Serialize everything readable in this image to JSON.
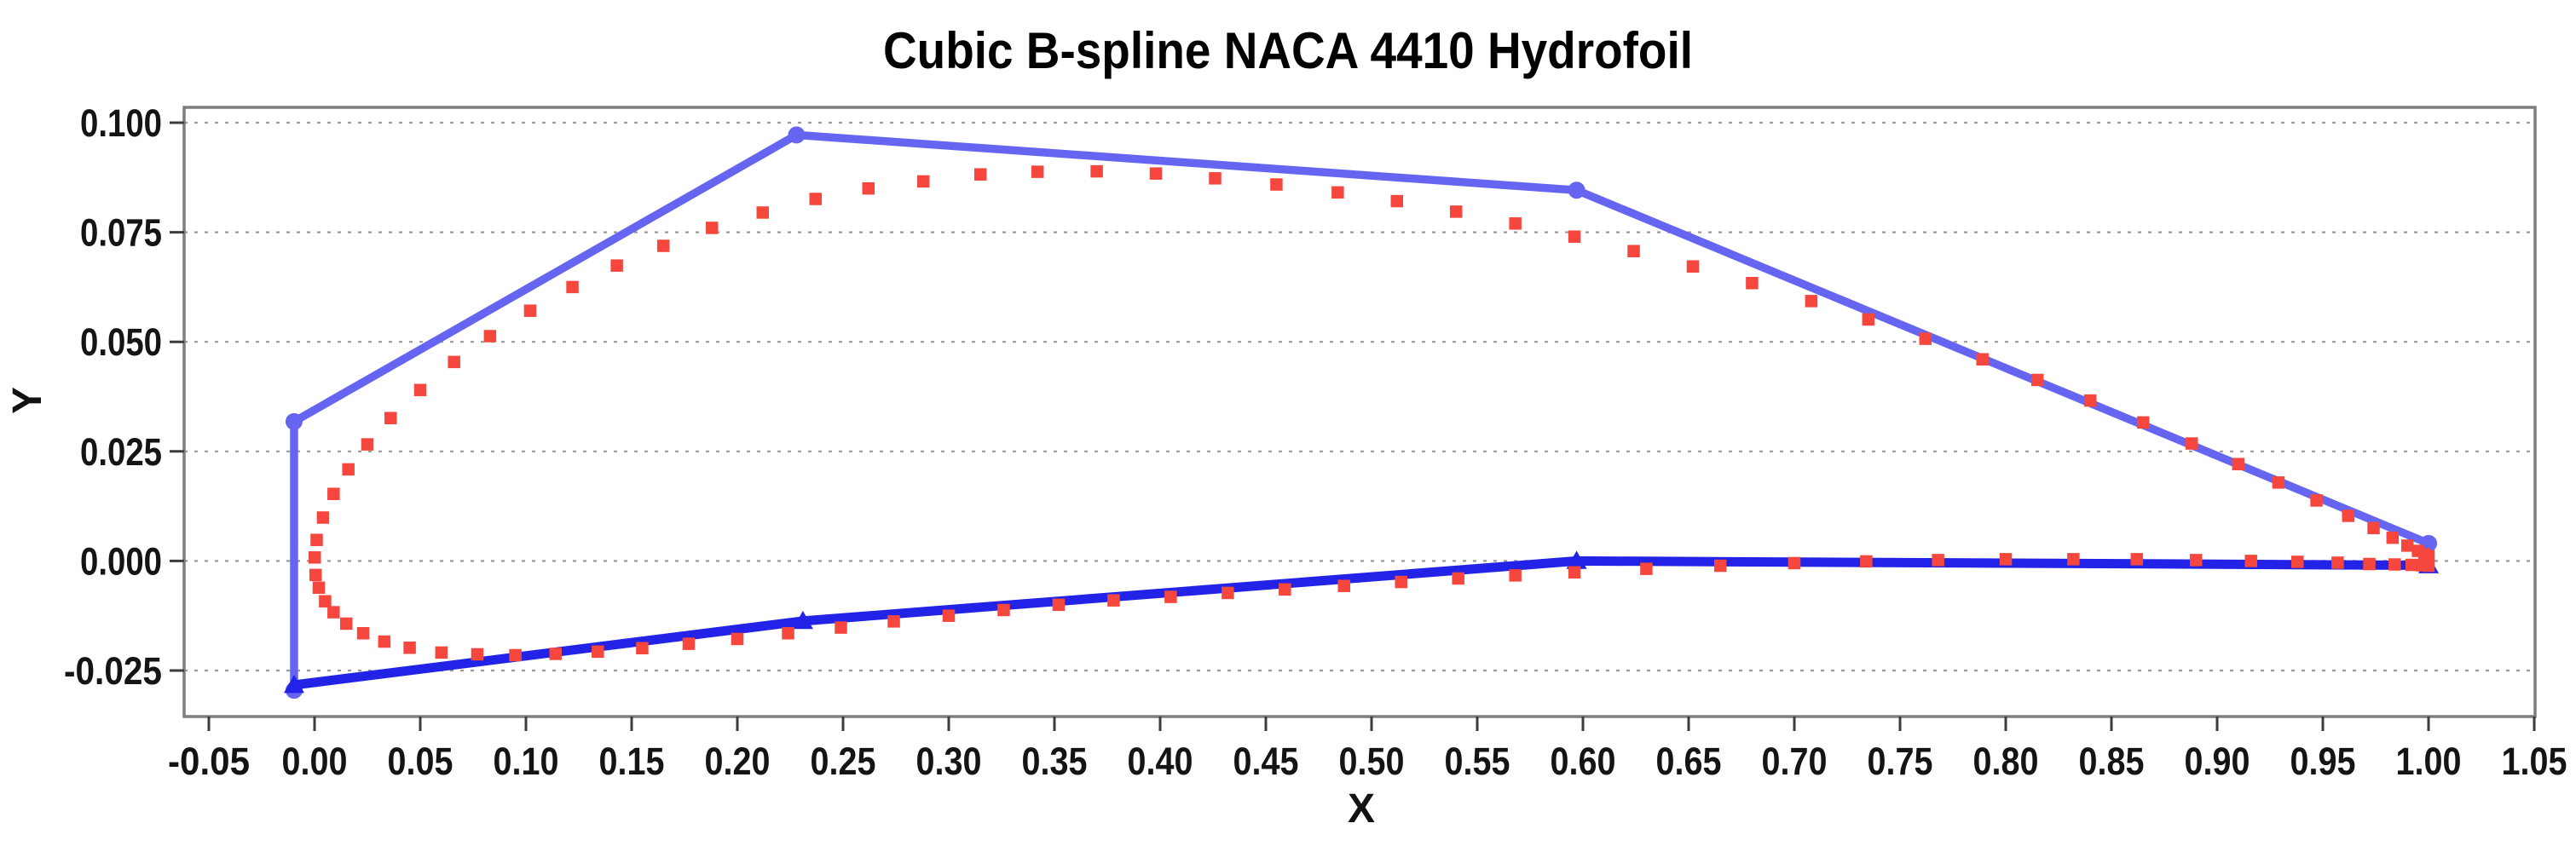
{
  "figure": {
    "title": "Cubic B-spline NACA 4410  Hydrofoil"
  },
  "chart_data": {
    "type": "scatter",
    "title": "Cubic B-spline NACA 4410  Hydrofoil",
    "xlabel": "X",
    "ylabel": "Y",
    "xlim": [
      -0.0617,
      1.0504
    ],
    "ylim": [
      -0.0355,
      0.1035
    ],
    "grid": {
      "horizontal": true,
      "vertical": false,
      "style": "dashed",
      "color": "#9a9a9a"
    },
    "legend": {
      "visible": false
    },
    "x_ticks": [
      {
        "v": -0.05,
        "label": "-0.05"
      },
      {
        "v": 0.0,
        "label": "0.00"
      },
      {
        "v": 0.05,
        "label": "0.05"
      },
      {
        "v": 0.1,
        "label": "0.10"
      },
      {
        "v": 0.15,
        "label": "0.15"
      },
      {
        "v": 0.2,
        "label": "0.20"
      },
      {
        "v": 0.25,
        "label": "0.25"
      },
      {
        "v": 0.3,
        "label": "0.30"
      },
      {
        "v": 0.35,
        "label": "0.35"
      },
      {
        "v": 0.4,
        "label": "0.40"
      },
      {
        "v": 0.45,
        "label": "0.45"
      },
      {
        "v": 0.5,
        "label": "0.50"
      },
      {
        "v": 0.55,
        "label": "0.55"
      },
      {
        "v": 0.6,
        "label": "0.60"
      },
      {
        "v": 0.65,
        "label": "0.65"
      },
      {
        "v": 0.7,
        "label": "0.70"
      },
      {
        "v": 0.75,
        "label": "0.75"
      },
      {
        "v": 0.8,
        "label": "0.80"
      },
      {
        "v": 0.85,
        "label": "0.85"
      },
      {
        "v": 0.9,
        "label": "0.90"
      },
      {
        "v": 0.95,
        "label": "0.95"
      },
      {
        "v": 1.0,
        "label": "1.00"
      },
      {
        "v": 1.05,
        "label": "1.05"
      }
    ],
    "y_ticks": [
      {
        "v": 0.1,
        "label": "0.100"
      },
      {
        "v": 0.075,
        "label": "0.075"
      },
      {
        "v": 0.05,
        "label": "0.050"
      },
      {
        "v": 0.025,
        "label": "0.025"
      },
      {
        "v": 0.0,
        "label": "0.000"
      },
      {
        "v": -0.025,
        "label": "-0.025"
      }
    ],
    "series": [
      {
        "name": "upper-control-polygon",
        "kind": "line",
        "color": "#6565f2",
        "line_width": 9.5,
        "marker": "circle",
        "marker_size": 10,
        "points": [
          [
            -0.0097,
            -0.0295
          ],
          [
            -0.0097,
            0.0318
          ],
          [
            0.228,
            0.0972
          ],
          [
            0.597,
            0.0846
          ],
          [
            1.0,
            0.004
          ]
        ]
      },
      {
        "name": "lower-control-polygon",
        "kind": "line",
        "color": "#2323e8",
        "line_width": 11,
        "marker": "triangle-up",
        "marker_size": 12,
        "points": [
          [
            -0.0097,
            -0.0283
          ],
          [
            0.231,
            -0.0137
          ],
          [
            0.597,
            0.0
          ],
          [
            1.0,
            -0.001
          ]
        ]
      },
      {
        "name": "bspline-curve-points",
        "kind": "scatter",
        "color": "#f5473d",
        "marker": "square",
        "marker_size": 14.5,
        "points": [
          [
            0.0005,
            -0.0032
          ],
          [
            0.002,
            -0.0061
          ],
          [
            0.005,
            -0.0092
          ],
          [
            0.009,
            -0.0117
          ],
          [
            0.015,
            -0.0143
          ],
          [
            0.023,
            -0.0165
          ],
          [
            0.033,
            -0.0184
          ],
          [
            0.045,
            -0.0198
          ],
          [
            0.06,
            -0.0209
          ],
          [
            0.077,
            -0.0213
          ],
          [
            0.095,
            -0.0215
          ],
          [
            0.114,
            -0.0212
          ],
          [
            0.134,
            -0.0207
          ],
          [
            0.155,
            -0.0199
          ],
          [
            0.177,
            -0.0189
          ],
          [
            0.2,
            -0.0178
          ],
          [
            0.224,
            -0.0165
          ],
          [
            0.249,
            -0.0152
          ],
          [
            0.274,
            -0.0138
          ],
          [
            0.3,
            -0.0125
          ],
          [
            0.326,
            -0.0112
          ],
          [
            0.352,
            -0.01
          ],
          [
            0.378,
            -0.009
          ],
          [
            0.405,
            -0.0082
          ],
          [
            0.432,
            -0.0073
          ],
          [
            0.459,
            -0.0065
          ],
          [
            0.487,
            -0.0057
          ],
          [
            0.514,
            -0.0048
          ],
          [
            0.541,
            -0.004
          ],
          [
            0.568,
            -0.0033
          ],
          [
            0.596,
            -0.0026
          ],
          [
            0.63,
            -0.0018
          ],
          [
            0.665,
            -0.0011
          ],
          [
            0.7,
            -0.0005
          ],
          [
            0.734,
            -0.0001
          ],
          [
            0.768,
            0.0002
          ],
          [
            0.8,
            0.0004
          ],
          [
            0.832,
            0.0004
          ],
          [
            0.862,
            0.0004
          ],
          [
            0.89,
            0.0002
          ],
          [
            0.916,
            0.0
          ],
          [
            0.938,
            -0.0002
          ],
          [
            0.957,
            -0.0004
          ],
          [
            0.972,
            -0.0007
          ],
          [
            0.984,
            -0.0008
          ],
          [
            0.992,
            -0.0009
          ],
          [
            0.997,
            -0.001
          ],
          [
            1.0,
            -0.0011
          ],
          [
            0.0001,
            0.0008
          ],
          [
            0.001,
            0.0048
          ],
          [
            0.004,
            0.0099
          ],
          [
            0.009,
            0.0153
          ],
          [
            0.016,
            0.0209
          ],
          [
            0.025,
            0.0266
          ],
          [
            0.036,
            0.0326
          ],
          [
            0.05,
            0.039
          ],
          [
            0.066,
            0.0454
          ],
          [
            0.083,
            0.0513
          ],
          [
            0.102,
            0.0571
          ],
          [
            0.122,
            0.0625
          ],
          [
            0.143,
            0.0674
          ],
          [
            0.165,
            0.0719
          ],
          [
            0.188,
            0.076
          ],
          [
            0.212,
            0.0795
          ],
          [
            0.237,
            0.0826
          ],
          [
            0.262,
            0.085
          ],
          [
            0.288,
            0.0866
          ],
          [
            0.315,
            0.0882
          ],
          [
            0.342,
            0.0888
          ],
          [
            0.37,
            0.0889
          ],
          [
            0.398,
            0.0884
          ],
          [
            0.426,
            0.0873
          ],
          [
            0.455,
            0.0859
          ],
          [
            0.484,
            0.0841
          ],
          [
            0.512,
            0.0821
          ],
          [
            0.54,
            0.0797
          ],
          [
            0.568,
            0.077
          ],
          [
            0.596,
            0.074
          ],
          [
            0.624,
            0.0707
          ],
          [
            0.652,
            0.0672
          ],
          [
            0.68,
            0.0634
          ],
          [
            0.708,
            0.0593
          ],
          [
            0.735,
            0.0551
          ],
          [
            0.762,
            0.0507
          ],
          [
            0.789,
            0.046
          ],
          [
            0.815,
            0.0413
          ],
          [
            0.84,
            0.0366
          ],
          [
            0.865,
            0.0316
          ],
          [
            0.888,
            0.0268
          ],
          [
            0.91,
            0.0221
          ],
          [
            0.929,
            0.0179
          ],
          [
            0.947,
            0.0138
          ],
          [
            0.962,
            0.0103
          ],
          [
            0.974,
            0.0075
          ],
          [
            0.983,
            0.0053
          ],
          [
            0.99,
            0.0035
          ],
          [
            0.995,
            0.0023
          ],
          [
            0.998,
            0.0015
          ],
          [
            1.0,
            0.0011
          ]
        ]
      }
    ]
  }
}
